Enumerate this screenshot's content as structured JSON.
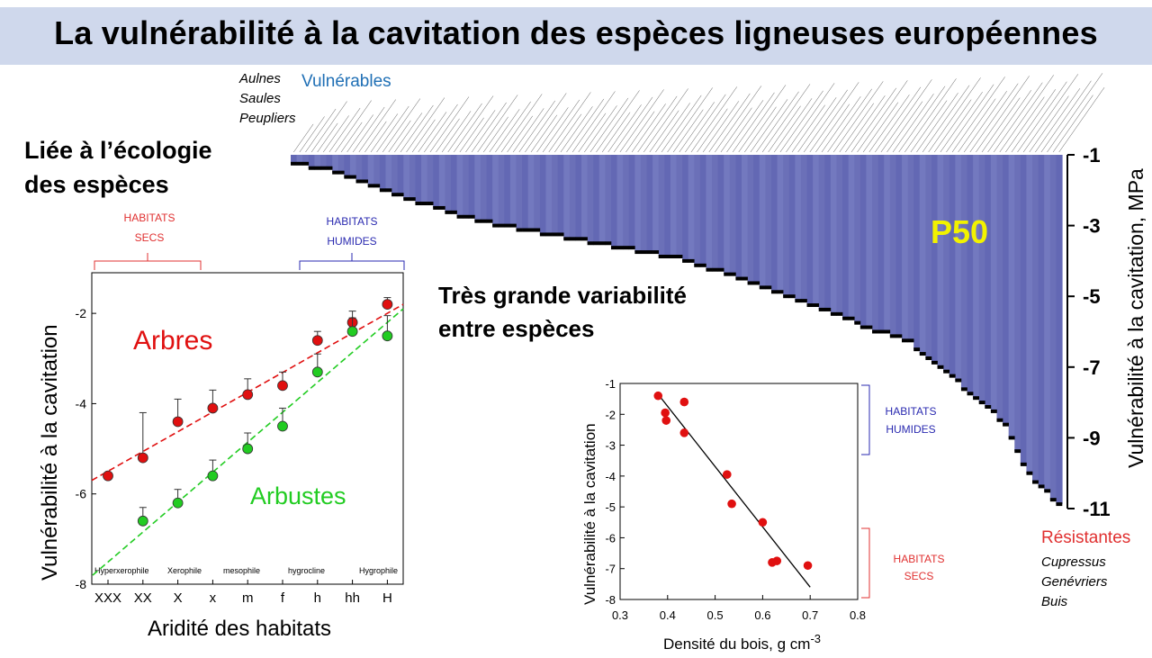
{
  "title": "La vulnérabilité à la cavitation des espèces ligneuses européennes",
  "left_heading": [
    "Liée à l’écologie",
    "des espèces"
  ],
  "middle_heading": [
    "Très grande variabilité",
    "entre espèces"
  ],
  "vulnerable": {
    "label": "Vulnérables",
    "genera": [
      "Aulnes",
      "Saules",
      "Peupliers"
    ]
  },
  "resistant": {
    "label": "Résistantes",
    "genera": [
      "Cupressus",
      "Genévriers",
      "Buis"
    ]
  },
  "colors": {
    "banner": "#cfd8ec",
    "p50_fill": "#6b70b8",
    "trees": "#e01010",
    "shrubs": "#22cc22",
    "dry": "#e03030",
    "humid": "#2a2ab0",
    "vulnerable": "#1f6fb5",
    "p50_label": "#f2f200"
  },
  "chart_data": [
    {
      "type": "area",
      "id": "p50",
      "label": "P50",
      "ylabel": "Vulnérabilité à la cavitation, MPa",
      "ylim": [
        -11,
        -1
      ],
      "y_ticks": [
        "-1",
        "-3",
        "-5",
        "-7",
        "-9",
        "-11"
      ],
      "y_tick_values": [
        -1,
        -3,
        -5,
        -7,
        -9,
        -11
      ],
      "n_species": 130,
      "profile_x": [
        0,
        0.06,
        0.12,
        0.2,
        0.25,
        0.4,
        0.5,
        0.6,
        0.7,
        0.75,
        0.8,
        0.85,
        0.9,
        0.93,
        0.96,
        1.0
      ],
      "profile_p50": [
        -1.2,
        -1.5,
        -2.0,
        -2.6,
        -2.9,
        -3.5,
        -3.9,
        -4.6,
        -5.4,
        -5.9,
        -6.2,
        -7.1,
        -8.0,
        -8.6,
        -10.0,
        -10.9
      ]
    },
    {
      "type": "scatter",
      "id": "aridity",
      "xlabel": "Aridité des habitats",
      "ylabel": "Vulnérabilité à la cavitation",
      "ylim": [
        -8,
        -1.1
      ],
      "y_ticks": [
        -2,
        -4,
        -6,
        -8
      ],
      "categories": [
        "XXX",
        "XX",
        "X",
        "x",
        "m",
        "f",
        "h",
        "hh",
        "H"
      ],
      "habitat_labels": [
        "Hyperxerophile",
        "Xerophile",
        "mesophile",
        "hygrocline",
        "Hygrophile"
      ],
      "series": [
        {
          "name": "Arbres",
          "values": [
            -5.6,
            -5.2,
            -4.4,
            -4.1,
            -3.8,
            -3.6,
            -2.6,
            -2.2,
            -1.8
          ],
          "err": [
            0,
            1.0,
            0.5,
            0.4,
            0.35,
            0.3,
            0.2,
            0.25,
            0.15
          ],
          "fit": [
            -5.7,
            -1.8
          ]
        },
        {
          "name": "Arbustes",
          "values": [
            null,
            -6.6,
            -6.2,
            -5.6,
            -5.0,
            -4.5,
            -3.3,
            -2.4,
            -2.5
          ],
          "err": [
            0,
            0.3,
            0.3,
            0.35,
            0.35,
            0.4,
            0.4,
            0.3,
            0.45
          ],
          "fit": [
            -7.8,
            -1.9
          ]
        }
      ],
      "bracket_dry": [
        "HABITATS",
        "SECS"
      ],
      "bracket_humid": [
        "HABITATS",
        "HUMIDES"
      ]
    },
    {
      "type": "scatter",
      "id": "density",
      "xlabel": "Densité du bois, g cm",
      "xlabel_sup": "-3",
      "ylabel": "Vulnérabilité à la cavitation",
      "xlim": [
        0.3,
        0.8
      ],
      "ylim": [
        -8,
        -1
      ],
      "x_ticks": [
        0.3,
        0.4,
        0.5,
        0.6,
        0.7,
        0.8
      ],
      "y_ticks": [
        -1,
        -2,
        -3,
        -4,
        -5,
        -6,
        -7,
        -8
      ],
      "points": [
        [
          0.38,
          -1.4
        ],
        [
          0.395,
          -1.95
        ],
        [
          0.397,
          -2.2
        ],
        [
          0.435,
          -1.6
        ],
        [
          0.435,
          -2.6
        ],
        [
          0.525,
          -3.95
        ],
        [
          0.535,
          -4.9
        ],
        [
          0.6,
          -5.5
        ],
        [
          0.62,
          -6.8
        ],
        [
          0.63,
          -6.75
        ],
        [
          0.695,
          -6.9
        ]
      ],
      "fit_x": [
        0.38,
        0.7
      ],
      "fit_y": [
        -1.35,
        -7.6
      ],
      "bracket_humid": [
        "HABITATS",
        "HUMIDES"
      ],
      "bracket_dry": [
        "HABITATS",
        "SECS"
      ]
    }
  ]
}
